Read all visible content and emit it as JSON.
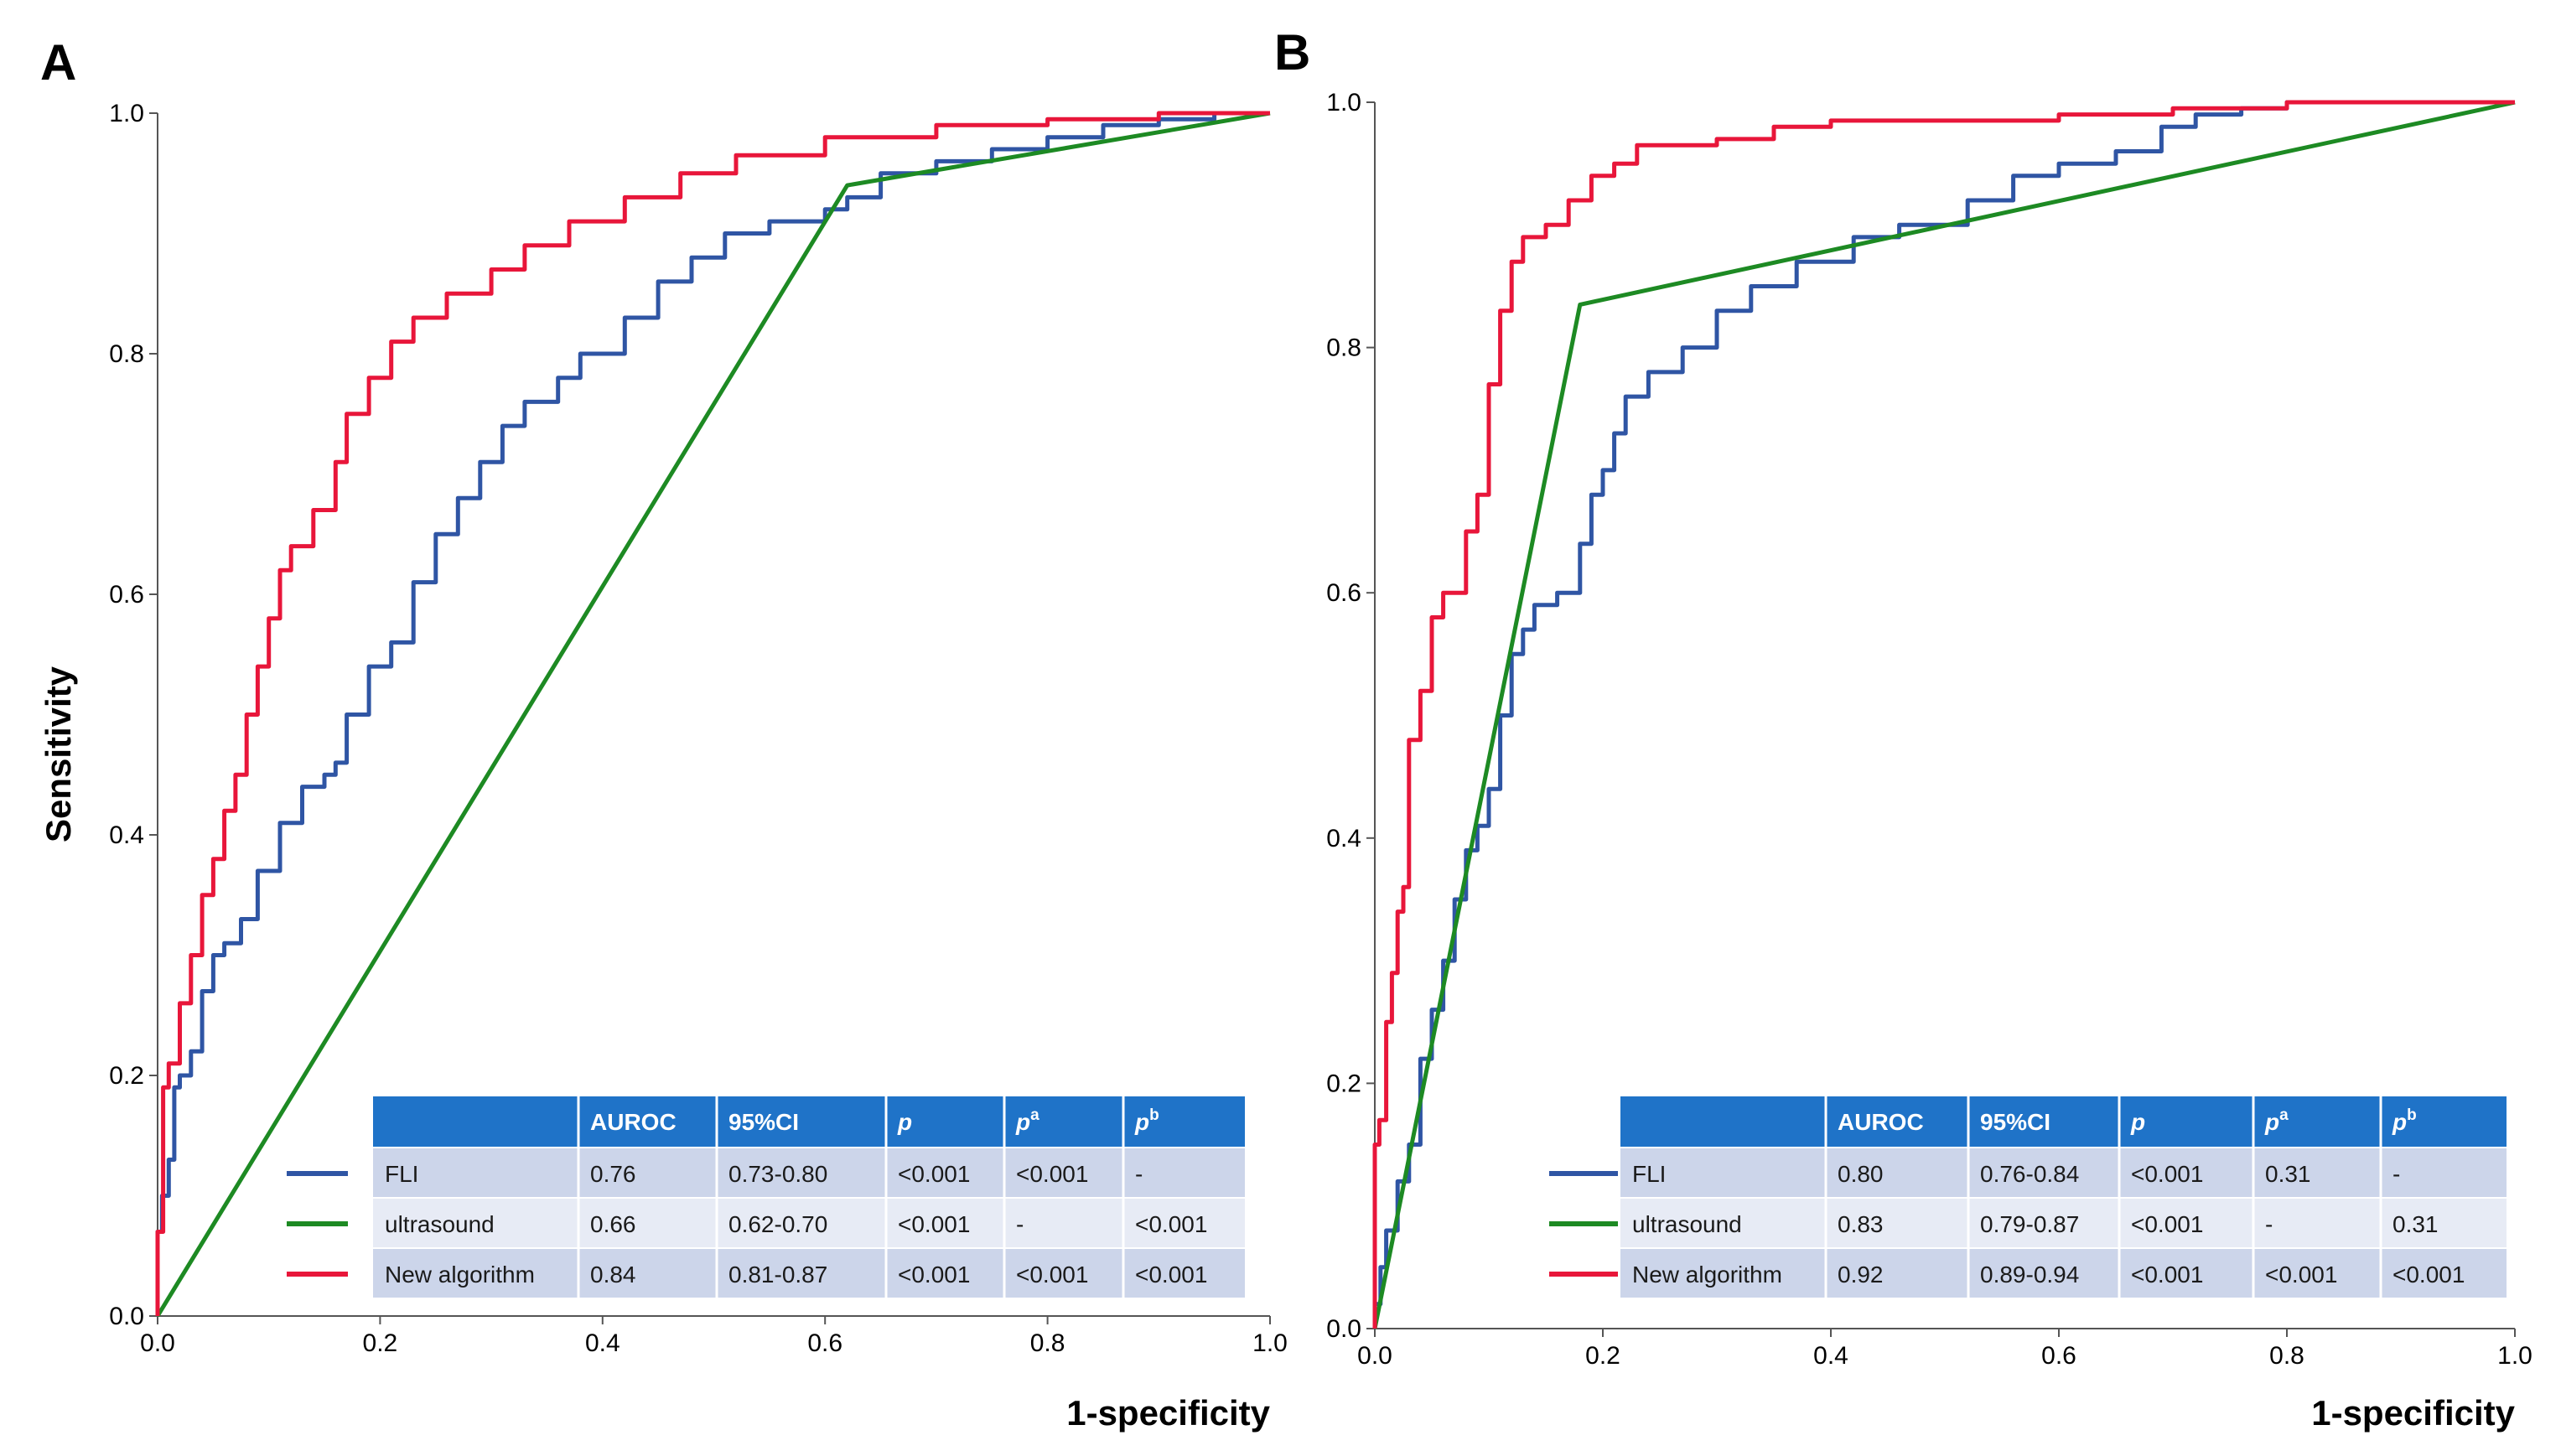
{
  "chart_data": [
    {
      "panel": "A",
      "type": "line",
      "xlabel": "1-specificity",
      "ylabel": "Sensitivity",
      "xlim": [
        0,
        1
      ],
      "ylim": [
        0,
        1
      ],
      "xticks": [
        "0.0",
        "0.2",
        "0.4",
        "0.6",
        "0.8",
        "1.0"
      ],
      "yticks": [
        "0.0",
        "0.2",
        "0.4",
        "0.6",
        "0.8",
        "1.0"
      ],
      "series": [
        {
          "name": "FLI",
          "color": "#2f55a4",
          "step": true,
          "points": [
            [
              0,
              0
            ],
            [
              0.004,
              0.07
            ],
            [
              0.01,
              0.1
            ],
            [
              0.015,
              0.13
            ],
            [
              0.02,
              0.19
            ],
            [
              0.03,
              0.2
            ],
            [
              0.04,
              0.22
            ],
            [
              0.05,
              0.27
            ],
            [
              0.06,
              0.3
            ],
            [
              0.075,
              0.31
            ],
            [
              0.09,
              0.33
            ],
            [
              0.11,
              0.37
            ],
            [
              0.13,
              0.41
            ],
            [
              0.15,
              0.44
            ],
            [
              0.16,
              0.45
            ],
            [
              0.17,
              0.46
            ],
            [
              0.19,
              0.5
            ],
            [
              0.21,
              0.54
            ],
            [
              0.23,
              0.56
            ],
            [
              0.25,
              0.61
            ],
            [
              0.27,
              0.65
            ],
            [
              0.29,
              0.68
            ],
            [
              0.31,
              0.71
            ],
            [
              0.33,
              0.74
            ],
            [
              0.36,
              0.76
            ],
            [
              0.38,
              0.78
            ],
            [
              0.42,
              0.8
            ],
            [
              0.45,
              0.83
            ],
            [
              0.48,
              0.86
            ],
            [
              0.51,
              0.88
            ],
            [
              0.55,
              0.9
            ],
            [
              0.6,
              0.91
            ],
            [
              0.62,
              0.92
            ],
            [
              0.65,
              0.93
            ],
            [
              0.7,
              0.95
            ],
            [
              0.75,
              0.96
            ],
            [
              0.8,
              0.97
            ],
            [
              0.85,
              0.98
            ],
            [
              0.9,
              0.99
            ],
            [
              0.95,
              0.995
            ],
            [
              1,
              1
            ]
          ]
        },
        {
          "name": "ultrasound",
          "color": "#1d8a23",
          "step": false,
          "points": [
            [
              0,
              0
            ],
            [
              0.62,
              0.94
            ],
            [
              1,
              1
            ]
          ]
        },
        {
          "name": "New algorithm",
          "color": "#e8163a",
          "step": true,
          "points": [
            [
              0,
              0
            ],
            [
              0.005,
              0.07
            ],
            [
              0.01,
              0.19
            ],
            [
              0.02,
              0.21
            ],
            [
              0.03,
              0.26
            ],
            [
              0.04,
              0.3
            ],
            [
              0.05,
              0.35
            ],
            [
              0.06,
              0.38
            ],
            [
              0.07,
              0.42
            ],
            [
              0.08,
              0.45
            ],
            [
              0.09,
              0.5
            ],
            [
              0.1,
              0.54
            ],
            [
              0.11,
              0.58
            ],
            [
              0.12,
              0.62
            ],
            [
              0.14,
              0.64
            ],
            [
              0.16,
              0.67
            ],
            [
              0.17,
              0.71
            ],
            [
              0.19,
              0.75
            ],
            [
              0.21,
              0.78
            ],
            [
              0.23,
              0.81
            ],
            [
              0.26,
              0.83
            ],
            [
              0.3,
              0.85
            ],
            [
              0.33,
              0.87
            ],
            [
              0.37,
              0.89
            ],
            [
              0.42,
              0.91
            ],
            [
              0.47,
              0.93
            ],
            [
              0.52,
              0.95
            ],
            [
              0.6,
              0.965
            ],
            [
              0.7,
              0.98
            ],
            [
              0.8,
              0.99
            ],
            [
              0.9,
              0.995
            ],
            [
              1,
              1
            ]
          ]
        }
      ],
      "table": {
        "headers": [
          "AUROC",
          "95%CI",
          "p",
          "p",
          "p"
        ],
        "header_superscripts": [
          "",
          "",
          "",
          "a",
          "b"
        ],
        "rows": [
          {
            "label": "FLI",
            "cells": [
              "0.76",
              "0.73-0.80",
              "<0.001",
              "<0.001",
              "-"
            ]
          },
          {
            "label": "ultrasound",
            "cells": [
              "0.66",
              "0.62-0.70",
              "<0.001",
              "-",
              "<0.001"
            ]
          },
          {
            "label": "New algorithm",
            "cells": [
              "0.84",
              "0.81-0.87",
              "<0.001",
              "<0.001",
              "<0.001"
            ]
          }
        ]
      }
    },
    {
      "panel": "B",
      "type": "line",
      "xlabel": "1-specificity",
      "ylabel": "",
      "xlim": [
        0,
        1
      ],
      "ylim": [
        0,
        1
      ],
      "xticks": [
        "0.0",
        "0.2",
        "0.4",
        "0.6",
        "0.8",
        "1.0"
      ],
      "yticks": [
        "0.0",
        "0.2",
        "0.4",
        "0.6",
        "0.8",
        "1.0"
      ],
      "series": [
        {
          "name": "FLI",
          "color": "#2f55a4",
          "step": true,
          "points": [
            [
              0,
              0
            ],
            [
              0.005,
              0.02
            ],
            [
              0.01,
              0.05
            ],
            [
              0.02,
              0.08
            ],
            [
              0.03,
              0.12
            ],
            [
              0.04,
              0.15
            ],
            [
              0.05,
              0.22
            ],
            [
              0.06,
              0.26
            ],
            [
              0.07,
              0.3
            ],
            [
              0.08,
              0.35
            ],
            [
              0.09,
              0.39
            ],
            [
              0.1,
              0.41
            ],
            [
              0.11,
              0.44
            ],
            [
              0.12,
              0.5
            ],
            [
              0.13,
              0.55
            ],
            [
              0.14,
              0.57
            ],
            [
              0.16,
              0.59
            ],
            [
              0.18,
              0.6
            ],
            [
              0.19,
              0.64
            ],
            [
              0.2,
              0.68
            ],
            [
              0.21,
              0.7
            ],
            [
              0.22,
              0.73
            ],
            [
              0.24,
              0.76
            ],
            [
              0.27,
              0.78
            ],
            [
              0.3,
              0.8
            ],
            [
              0.33,
              0.83
            ],
            [
              0.37,
              0.85
            ],
            [
              0.42,
              0.87
            ],
            [
              0.46,
              0.89
            ],
            [
              0.52,
              0.9
            ],
            [
              0.56,
              0.92
            ],
            [
              0.6,
              0.94
            ],
            [
              0.65,
              0.95
            ],
            [
              0.69,
              0.96
            ],
            [
              0.72,
              0.98
            ],
            [
              0.76,
              0.99
            ],
            [
              0.8,
              0.995
            ],
            [
              0.9,
              1
            ],
            [
              1,
              1
            ]
          ]
        },
        {
          "name": "ultrasound",
          "color": "#1d8a23",
          "step": false,
          "points": [
            [
              0,
              0
            ],
            [
              0.18,
              0.835
            ],
            [
              1,
              1
            ]
          ]
        },
        {
          "name": "New algorithm",
          "color": "#e8163a",
          "step": true,
          "points": [
            [
              0,
              0
            ],
            [
              0.004,
              0.15
            ],
            [
              0.01,
              0.17
            ],
            [
              0.015,
              0.25
            ],
            [
              0.02,
              0.29
            ],
            [
              0.025,
              0.34
            ],
            [
              0.03,
              0.36
            ],
            [
              0.04,
              0.48
            ],
            [
              0.05,
              0.52
            ],
            [
              0.06,
              0.58
            ],
            [
              0.08,
              0.6
            ],
            [
              0.09,
              0.65
            ],
            [
              0.1,
              0.68
            ],
            [
              0.11,
              0.77
            ],
            [
              0.12,
              0.83
            ],
            [
              0.13,
              0.87
            ],
            [
              0.15,
              0.89
            ],
            [
              0.17,
              0.9
            ],
            [
              0.19,
              0.92
            ],
            [
              0.21,
              0.94
            ],
            [
              0.23,
              0.95
            ],
            [
              0.24,
              0.965
            ],
            [
              0.3,
              0.965
            ],
            [
              0.35,
              0.97
            ],
            [
              0.4,
              0.98
            ],
            [
              0.5,
              0.985
            ],
            [
              0.6,
              0.985
            ],
            [
              0.7,
              0.99
            ],
            [
              0.8,
              0.995
            ],
            [
              1,
              1
            ]
          ]
        }
      ],
      "table": {
        "headers": [
          "AUROC",
          "95%CI",
          "p",
          "p",
          "p"
        ],
        "header_superscripts": [
          "",
          "",
          "",
          "a",
          "b"
        ],
        "rows": [
          {
            "label": "FLI",
            "cells": [
              "0.80",
              "0.76-0.84",
              "<0.001",
              "0.31",
              "-"
            ]
          },
          {
            "label": "ultrasound",
            "cells": [
              "0.83",
              "0.79-0.87",
              "<0.001",
              "-",
              "0.31"
            ]
          },
          {
            "label": "New algorithm",
            "cells": [
              "0.92",
              "0.89-0.94",
              "<0.001",
              "<0.001",
              "<0.001"
            ]
          }
        ]
      }
    }
  ]
}
